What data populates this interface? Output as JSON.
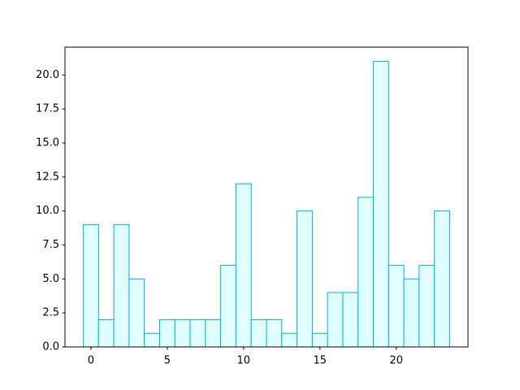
{
  "chart_data": {
    "type": "bar",
    "x": [
      0,
      1,
      2,
      3,
      4,
      5,
      6,
      7,
      8,
      9,
      10,
      11,
      12,
      13,
      14,
      15,
      16,
      17,
      18,
      19,
      20,
      21,
      22,
      23
    ],
    "values": [
      9,
      2,
      9,
      5,
      1,
      2,
      2,
      2,
      2,
      6,
      12,
      2,
      2,
      1,
      10,
      1,
      4,
      4,
      11,
      21,
      6,
      5,
      6,
      10
    ],
    "color": "#e0ffff",
    "edgecolor": "#00b0e0",
    "xlim": [
      -1.7,
      24.7
    ],
    "xticks": [
      0,
      5,
      10,
      15,
      20
    ],
    "ylim": [
      0,
      22.05
    ],
    "yticks": [
      {
        "value": 0,
        "label": "0.0"
      },
      2.5,
      {
        "value": 5,
        "label": "5.0"
      },
      7.5,
      {
        "value": 10,
        "label": "10.0"
      },
      12.5,
      {
        "value": 15,
        "label": "15.0"
      },
      17.5,
      {
        "value": 20,
        "label": "20.0"
      }
    ]
  }
}
